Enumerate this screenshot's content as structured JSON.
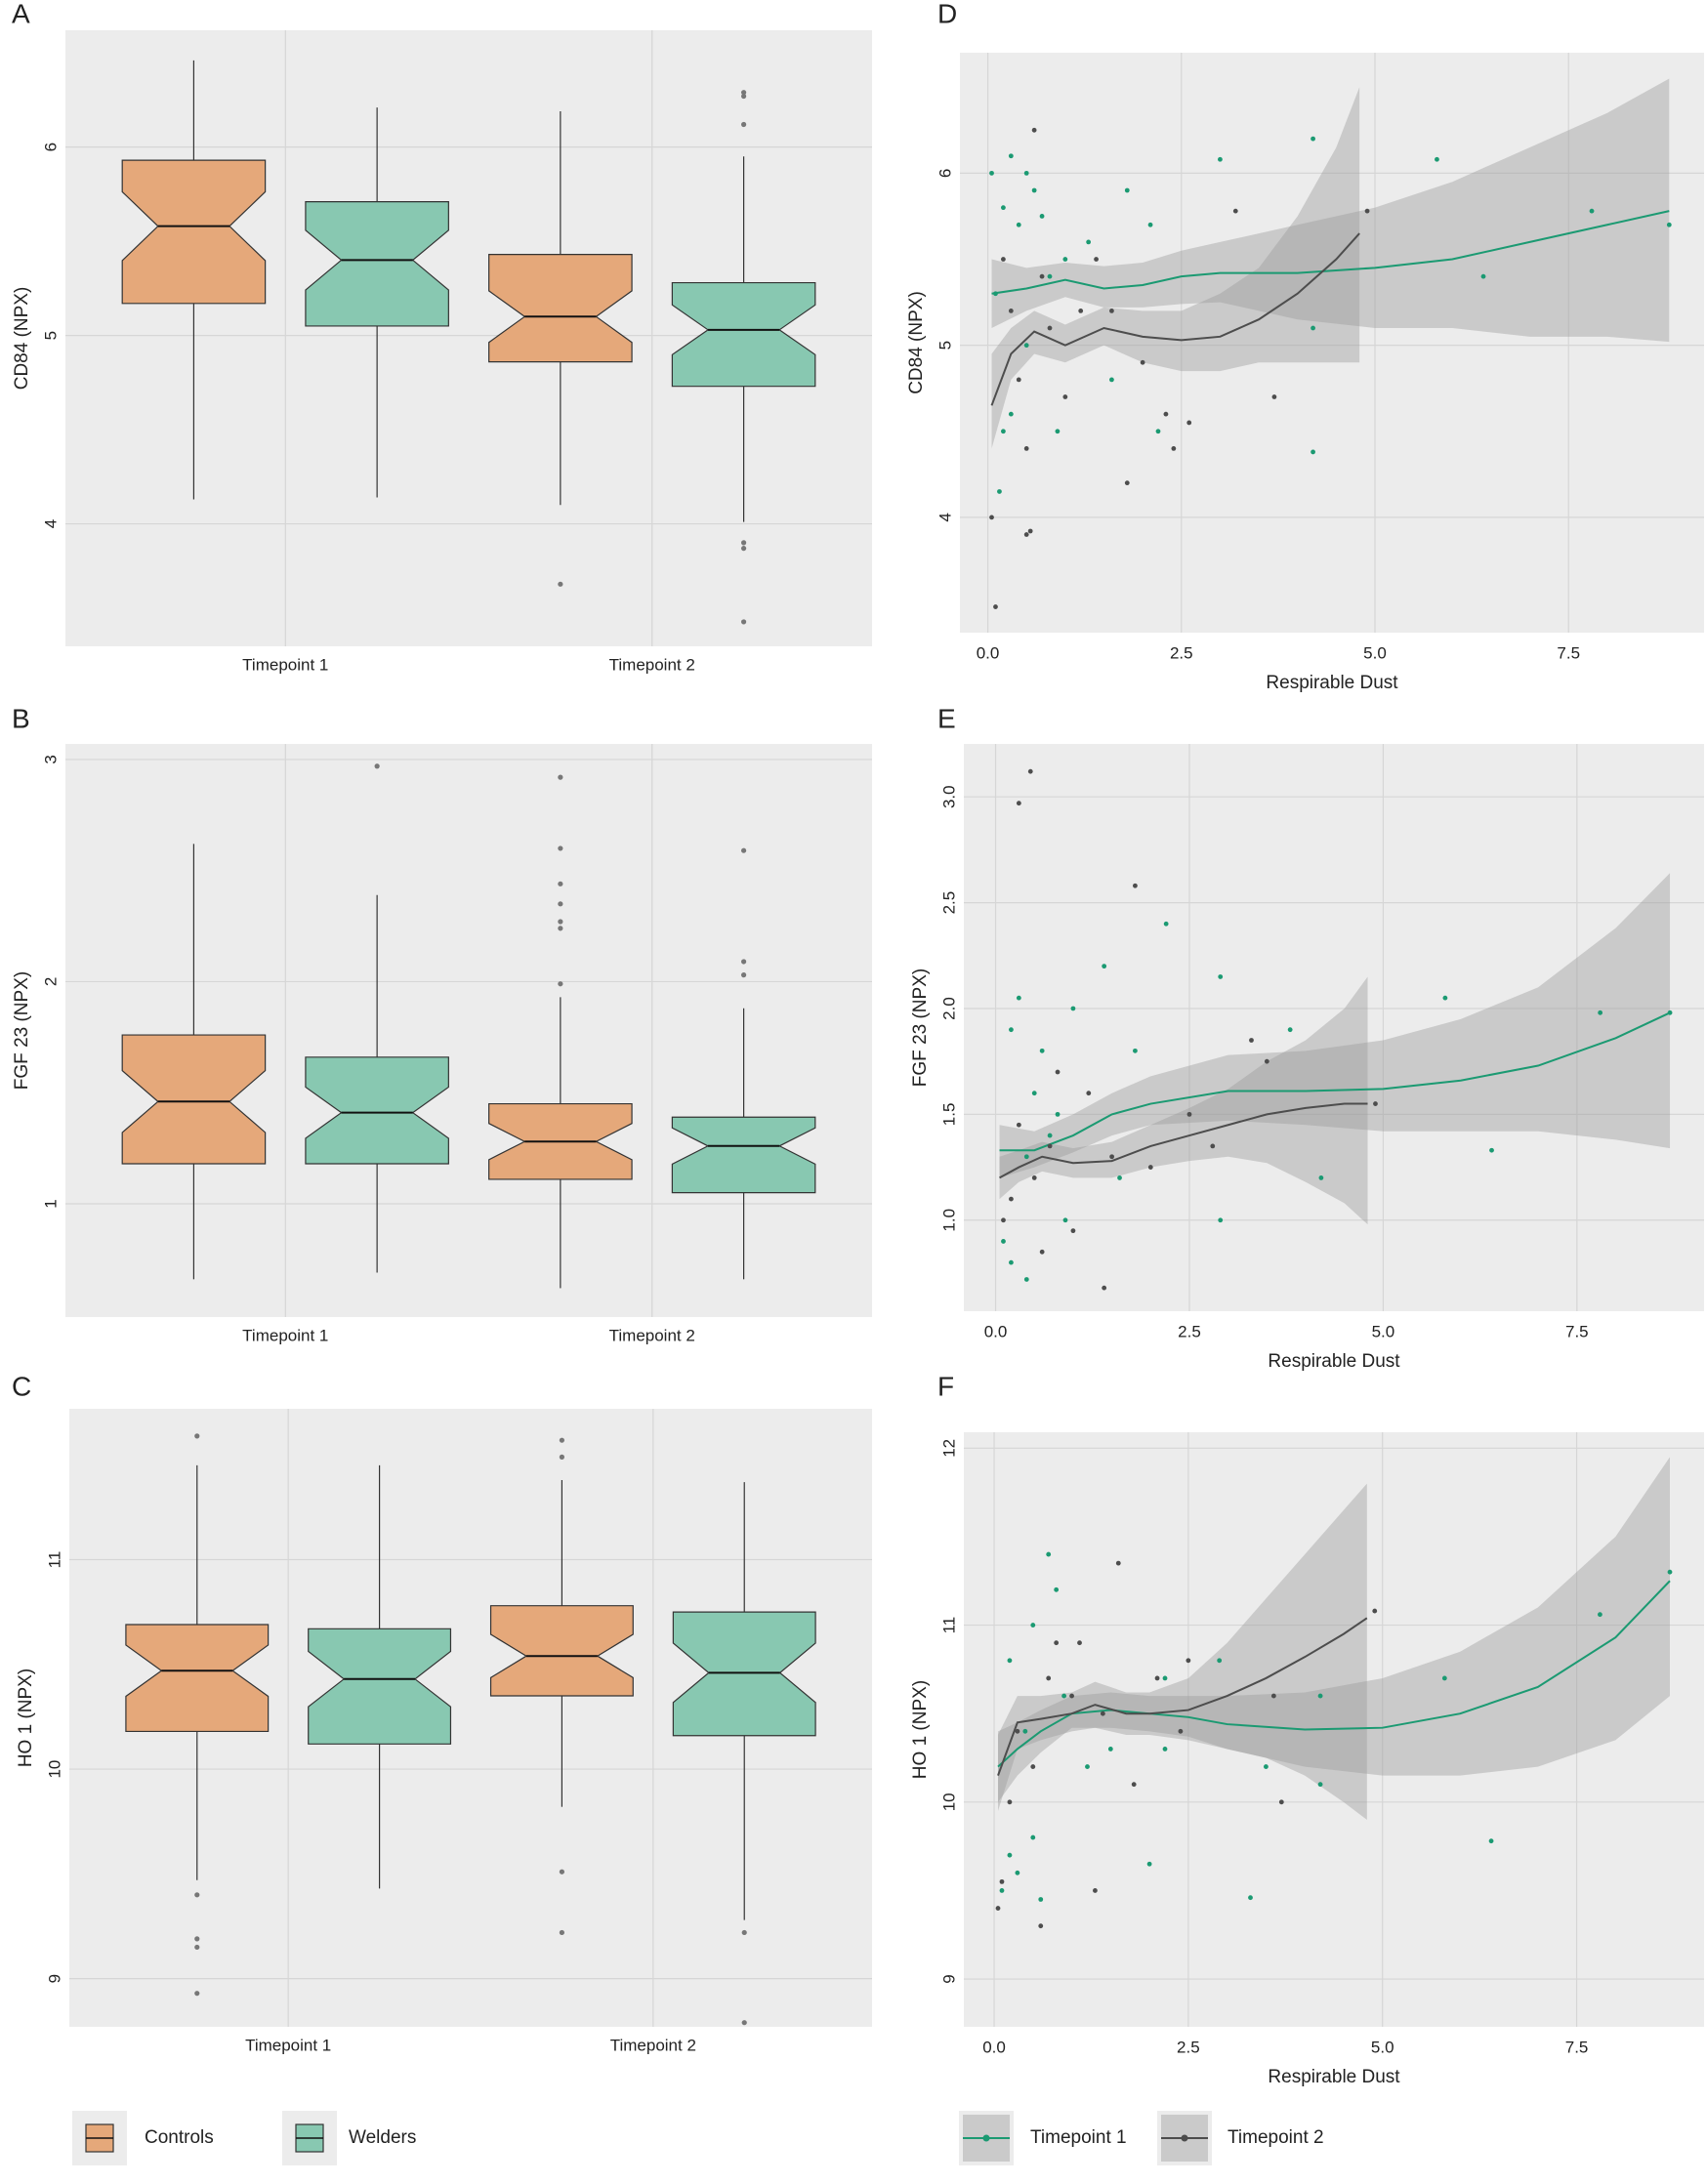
{
  "legends": [
    {
      "entries": [
        {
          "name": "Controls",
          "color": "#e5a87a"
        },
        {
          "name": "Welders",
          "color": "#88c8b1"
        }
      ]
    },
    {
      "entries": [
        {
          "name": "Timepoint 1",
          "color": "#1b9a72"
        },
        {
          "name": "Timepoint 2",
          "color": "#4d4d4d"
        }
      ]
    }
  ],
  "chart_data": [
    {
      "type": "box",
      "label": "A",
      "y_label": "CD84 (NPX)",
      "categories": [
        "Timepoint 1",
        "Timepoint 2"
      ],
      "ylim": [
        3.35,
        6.62
      ],
      "yticks": [
        4,
        5,
        6
      ],
      "series": [
        {
          "boxes": [
            {
              "whisker_low": 4.13,
              "q1": 5.17,
              "median": 5.58,
              "q3": 5.93,
              "whisker_high": 6.46,
              "outliers": []
            },
            {
              "whisker_low": 4.1,
              "q1": 4.86,
              "median": 5.1,
              "q3": 5.43,
              "whisker_high": 6.19,
              "outliers": [
                3.68
              ]
            }
          ]
        },
        {
          "boxes": [
            {
              "whisker_low": 4.14,
              "q1": 5.05,
              "median": 5.4,
              "q3": 5.71,
              "whisker_high": 6.21,
              "outliers": []
            },
            {
              "whisker_low": 4.01,
              "q1": 4.73,
              "median": 5.03,
              "q3": 5.28,
              "whisker_high": 5.95,
              "outliers": [
                6.29,
                6.27,
                6.12,
                3.9,
                3.87,
                3.48
              ]
            }
          ]
        }
      ]
    },
    {
      "type": "box",
      "label": "B",
      "y_label": "FGF 23 (NPX)",
      "categories": [
        "Timepoint 1",
        "Timepoint 2"
      ],
      "ylim": [
        0.49,
        3.07
      ],
      "yticks": [
        1,
        2,
        3
      ],
      "series": [
        {
          "boxes": [
            {
              "whisker_low": 0.66,
              "q1": 1.18,
              "median": 1.46,
              "q3": 1.76,
              "whisker_high": 2.62,
              "outliers": []
            },
            {
              "whisker_low": 0.62,
              "q1": 1.11,
              "median": 1.28,
              "q3": 1.45,
              "whisker_high": 1.93,
              "outliers": [
                2.92,
                2.6,
                2.44,
                2.35,
                2.27,
                2.24,
                1.99
              ]
            }
          ]
        },
        {
          "boxes": [
            {
              "whisker_low": 0.69,
              "q1": 1.18,
              "median": 1.41,
              "q3": 1.66,
              "whisker_high": 2.39,
              "outliers": [
                2.97
              ]
            },
            {
              "whisker_low": 0.66,
              "q1": 1.05,
              "median": 1.26,
              "q3": 1.39,
              "whisker_high": 1.88,
              "outliers": [
                2.59,
                2.09,
                2.03
              ]
            }
          ]
        }
      ]
    },
    {
      "type": "box",
      "label": "C",
      "y_label": "HO 1 (NPX)",
      "categories": [
        "Timepoint 1",
        "Timepoint 2"
      ],
      "ylim": [
        8.77,
        11.72
      ],
      "yticks": [
        9,
        10,
        11
      ],
      "series": [
        {
          "boxes": [
            {
              "whisker_low": 9.47,
              "q1": 10.18,
              "median": 10.47,
              "q3": 10.69,
              "whisker_high": 11.45,
              "outliers": [
                11.59,
                9.4,
                9.19,
                9.15,
                8.93
              ]
            },
            {
              "whisker_low": 9.82,
              "q1": 10.35,
              "median": 10.54,
              "q3": 10.78,
              "whisker_high": 11.38,
              "outliers": [
                11.57,
                11.49,
                9.51,
                9.22
              ]
            }
          ]
        },
        {
          "boxes": [
            {
              "whisker_low": 9.43,
              "q1": 10.12,
              "median": 10.43,
              "q3": 10.67,
              "whisker_high": 11.45,
              "outliers": []
            },
            {
              "whisker_low": 9.28,
              "q1": 10.16,
              "median": 10.46,
              "q3": 10.75,
              "whisker_high": 11.37,
              "outliers": [
                9.22,
                8.79
              ]
            }
          ]
        }
      ]
    },
    {
      "type": "scatter",
      "label": "D",
      "y_label": "CD84 (NPX)",
      "x_label": "Respirable Dust",
      "xlim": [
        -0.36,
        9.25
      ],
      "xticks": [
        {
          "value": 0,
          "label": "0.0"
        },
        2.5,
        {
          "value": 5,
          "label": "5.0"
        },
        7.5
      ],
      "ylim": [
        3.33,
        6.7
      ],
      "yticks": [
        4,
        5,
        6
      ],
      "series": [
        {
          "x": [
            0.05,
            0.5,
            1,
            1.5,
            2,
            2.5,
            3,
            4,
            5,
            6,
            7,
            8,
            8.8
          ],
          "smooth": [
            5.3,
            5.33,
            5.38,
            5.33,
            5.35,
            5.4,
            5.42,
            5.42,
            5.45,
            5.5,
            5.6,
            5.7,
            5.78
          ],
          "lower": [
            5.1,
            5.2,
            5.28,
            5.22,
            5.22,
            5.24,
            5.25,
            5.15,
            5.1,
            5.1,
            5.05,
            5.05,
            5.02
          ],
          "upper": [
            5.5,
            5.45,
            5.48,
            5.46,
            5.48,
            5.55,
            5.6,
            5.7,
            5.8,
            5.95,
            6.15,
            6.35,
            6.55
          ],
          "points_x": [
            0.05,
            0.2,
            0.3,
            0.4,
            0.5,
            0.6,
            0.7,
            0.1,
            0.2,
            0.15,
            0.3,
            0.5,
            0.8,
            1.0,
            1.3,
            1.8,
            2.1,
            3.0,
            4.2,
            4.2,
            4.2,
            5.8,
            6.4,
            7.8,
            8.8,
            0.9,
            1.6,
            2.2
          ],
          "points_y": [
            6.0,
            5.8,
            6.1,
            5.7,
            6.0,
            5.9,
            5.75,
            5.3,
            4.5,
            4.15,
            4.6,
            5.0,
            5.4,
            5.5,
            5.6,
            5.9,
            5.7,
            6.08,
            6.2,
            4.38,
            5.1,
            6.08,
            5.4,
            5.78,
            5.7,
            4.5,
            4.8,
            4.5
          ]
        },
        {
          "x": [
            0.05,
            0.3,
            0.6,
            1,
            1.5,
            2,
            2.5,
            3,
            3.5,
            4,
            4.5,
            4.8
          ],
          "smooth": [
            4.65,
            4.95,
            5.08,
            5.0,
            5.1,
            5.05,
            5.03,
            5.05,
            5.15,
            5.3,
            5.5,
            5.65
          ],
          "lower": [
            4.4,
            4.8,
            4.95,
            4.9,
            5.0,
            4.9,
            4.85,
            4.85,
            4.9,
            4.9,
            4.9,
            4.9
          ],
          "upper": [
            4.95,
            5.1,
            5.2,
            5.12,
            5.22,
            5.2,
            5.2,
            5.3,
            5.45,
            5.75,
            6.15,
            6.5
          ],
          "points_x": [
            0.1,
            0.05,
            0.5,
            0.55,
            0.6,
            0.3,
            0.4,
            0.5,
            0.8,
            1.0,
            1.2,
            1.6,
            1.8,
            2.3,
            2.4,
            2.6,
            3.2,
            3.7,
            4.9,
            0.2,
            0.7,
            1.4,
            2.0
          ],
          "points_y": [
            3.48,
            4.0,
            3.9,
            3.92,
            6.25,
            5.2,
            4.8,
            4.4,
            5.1,
            4.7,
            5.2,
            5.2,
            4.2,
            4.6,
            4.4,
            4.55,
            5.78,
            4.7,
            5.78,
            5.5,
            5.4,
            5.5,
            4.9
          ]
        }
      ]
    },
    {
      "type": "scatter",
      "label": "E",
      "y_label": "FGF 23 (NPX)",
      "x_label": "Respirable Dust",
      "xlim": [
        -0.41,
        9.14
      ],
      "xticks": [
        {
          "value": 0,
          "label": "0.0"
        },
        2.5,
        {
          "value": 5,
          "label": "5.0"
        },
        7.5
      ],
      "ylim": [
        0.57,
        3.25
      ],
      "yticks": [
        {
          "value": 1,
          "label": "1.0"
        },
        1.5,
        {
          "value": 2,
          "label": "2.0"
        },
        2.5,
        {
          "value": 3,
          "label": "3.0"
        }
      ],
      "series": [
        {
          "x": [
            0.05,
            0.5,
            1,
            1.5,
            2,
            3,
            4,
            5,
            6,
            7,
            8,
            8.7
          ],
          "smooth": [
            1.33,
            1.33,
            1.4,
            1.5,
            1.55,
            1.61,
            1.61,
            1.62,
            1.66,
            1.73,
            1.86,
            1.98
          ],
          "lower": [
            1.2,
            1.25,
            1.32,
            1.4,
            1.45,
            1.47,
            1.45,
            1.42,
            1.42,
            1.42,
            1.38,
            1.34
          ],
          "upper": [
            1.45,
            1.42,
            1.5,
            1.6,
            1.68,
            1.78,
            1.8,
            1.85,
            1.95,
            2.1,
            2.38,
            2.64
          ],
          "points_x": [
            0.4,
            0.2,
            0.3,
            0.5,
            0.6,
            0.7,
            0.1,
            0.2,
            0.4,
            0.8,
            1.0,
            1.4,
            1.8,
            2.2,
            2.9,
            2.9,
            3.8,
            4.2,
            5.8,
            6.4,
            7.8,
            8.7,
            1.6,
            0.9
          ],
          "points_y": [
            1.3,
            1.9,
            2.05,
            1.6,
            1.8,
            1.4,
            0.9,
            0.8,
            0.72,
            1.5,
            2.0,
            2.2,
            1.8,
            2.4,
            2.15,
            1.0,
            1.9,
            1.2,
            2.05,
            1.33,
            1.98,
            1.98,
            1.2,
            1.0
          ]
        },
        {
          "x": [
            0.05,
            0.3,
            0.6,
            1,
            1.5,
            2,
            2.5,
            3,
            3.5,
            4,
            4.5,
            4.8
          ],
          "smooth": [
            1.2,
            1.25,
            1.3,
            1.27,
            1.28,
            1.35,
            1.4,
            1.45,
            1.5,
            1.53,
            1.55,
            1.55
          ],
          "lower": [
            1.1,
            1.18,
            1.23,
            1.2,
            1.2,
            1.25,
            1.28,
            1.3,
            1.27,
            1.18,
            1.08,
            0.98
          ],
          "upper": [
            1.3,
            1.33,
            1.37,
            1.34,
            1.37,
            1.45,
            1.53,
            1.62,
            1.75,
            1.85,
            2.0,
            2.15
          ],
          "points_x": [
            0.3,
            0.45,
            1.8,
            0.1,
            0.2,
            0.5,
            0.7,
            1.0,
            1.4,
            1.2,
            2.5,
            3.3,
            4.9,
            0.6,
            1.5,
            2.0,
            0.3,
            0.8,
            2.8,
            3.5
          ],
          "points_y": [
            2.97,
            3.12,
            2.58,
            1.0,
            1.1,
            1.2,
            1.35,
            0.95,
            0.68,
            1.6,
            1.5,
            1.85,
            1.55,
            0.85,
            1.3,
            1.25,
            1.45,
            1.7,
            1.35,
            1.75
          ]
        }
      ]
    },
    {
      "type": "scatter",
      "label": "F",
      "y_label": "HO 1 (NPX)",
      "x_label": "Respirable Dust",
      "xlim": [
        -0.39,
        9.14
      ],
      "xticks": [
        {
          "value": 0,
          "label": "0.0"
        },
        2.5,
        {
          "value": 5,
          "label": "5.0"
        },
        7.5
      ],
      "ylim": [
        8.73,
        12.09
      ],
      "yticks": [
        9,
        10,
        11,
        12
      ],
      "series": [
        {
          "x": [
            0.05,
            0.3,
            0.6,
            1,
            1.5,
            2,
            2.5,
            3,
            4,
            5,
            6,
            7,
            8,
            8.7
          ],
          "smooth": [
            10.2,
            10.3,
            10.4,
            10.5,
            10.52,
            10.5,
            10.48,
            10.44,
            10.41,
            10.42,
            10.5,
            10.65,
            10.93,
            11.25
          ],
          "lower": [
            10.0,
            10.15,
            10.28,
            10.42,
            10.42,
            10.4,
            10.37,
            10.3,
            10.2,
            10.15,
            10.15,
            10.2,
            10.35,
            10.6
          ],
          "upper": [
            10.4,
            10.45,
            10.52,
            10.6,
            10.62,
            10.6,
            10.6,
            10.6,
            10.62,
            10.7,
            10.85,
            11.1,
            11.5,
            11.95
          ],
          "points_x": [
            0.1,
            0.2,
            0.3,
            0.5,
            0.6,
            0.7,
            0.8,
            0.5,
            0.2,
            0.4,
            0.9,
            1.2,
            1.5,
            2.2,
            2.2,
            2.9,
            3.3,
            3.5,
            4.2,
            4.2,
            5.8,
            6.4,
            7.8,
            8.7,
            2.0
          ],
          "points_y": [
            9.5,
            9.7,
            9.6,
            9.8,
            9.45,
            11.4,
            11.2,
            11.0,
            10.8,
            10.4,
            10.6,
            10.2,
            10.3,
            10.7,
            10.3,
            10.8,
            9.46,
            10.2,
            10.1,
            10.6,
            10.7,
            9.78,
            11.06,
            11.3,
            9.65
          ]
        },
        {
          "x": [
            0.05,
            0.3,
            0.6,
            1,
            1.3,
            1.7,
            2,
            2.5,
            3,
            3.5,
            4,
            4.5,
            4.8
          ],
          "smooth": [
            10.15,
            10.45,
            10.47,
            10.5,
            10.55,
            10.5,
            10.5,
            10.52,
            10.6,
            10.7,
            10.82,
            10.95,
            11.04
          ],
          "lower": [
            9.95,
            10.3,
            10.35,
            10.4,
            10.42,
            10.38,
            10.38,
            10.35,
            10.3,
            10.25,
            10.15,
            10.0,
            9.9
          ],
          "upper": [
            10.38,
            10.6,
            10.6,
            10.62,
            10.68,
            10.62,
            10.62,
            10.7,
            10.9,
            11.15,
            11.4,
            11.65,
            11.8
          ],
          "points_x": [
            0.05,
            0.1,
            0.2,
            0.3,
            0.5,
            0.6,
            0.8,
            1.0,
            1.3,
            1.6,
            1.8,
            2.1,
            2.5,
            3.6,
            3.7,
            4.9,
            1.1,
            0.7,
            1.4,
            2.4
          ],
          "points_y": [
            9.4,
            9.55,
            10.0,
            10.4,
            10.2,
            9.3,
            10.9,
            10.6,
            9.5,
            11.35,
            10.1,
            10.7,
            10.8,
            10.6,
            10.0,
            11.08,
            10.9,
            10.7,
            10.5,
            10.4
          ]
        }
      ]
    }
  ]
}
